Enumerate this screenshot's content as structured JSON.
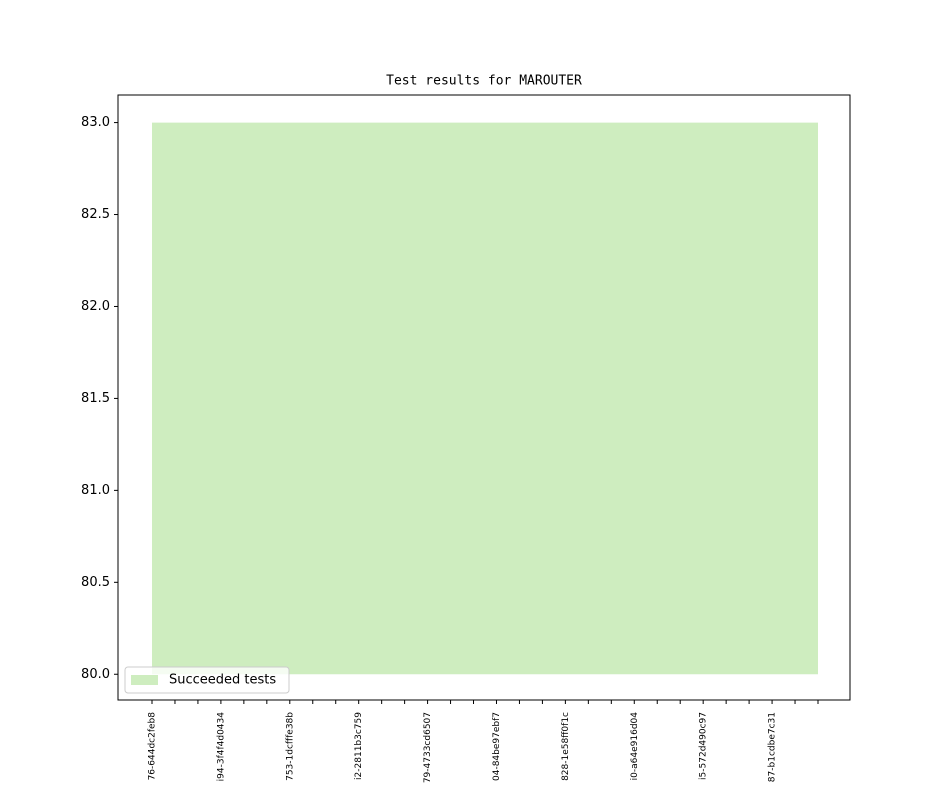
{
  "chart_data": {
    "type": "area",
    "title": "Test results for MAROUTER",
    "categories": [
      "76-644dc2feb8",
      null,
      null,
      "i94-3f4f4d0434",
      null,
      null,
      "753-1dcfffe38b",
      null,
      null,
      "i2-2811b3c759",
      null,
      null,
      "79-4733cd6507",
      null,
      null,
      "04-84be97ebf7",
      null,
      null,
      "828-1e58ff0f1c",
      null,
      null,
      "i0-a64e916d04",
      null,
      null,
      "i5-572d490c97",
      null,
      null,
      "87-b1cdbe7c31",
      null,
      null
    ],
    "series": [
      {
        "name": "Succeeded tests",
        "color": "#ceedbf",
        "values": [
          83,
          83,
          83,
          83,
          83,
          83,
          83,
          83,
          83,
          83,
          83,
          83,
          83,
          83,
          83,
          83,
          83,
          83,
          83,
          83,
          83,
          83,
          83,
          83,
          83,
          83,
          83,
          83,
          83,
          83
        ],
        "lower": [
          80,
          80,
          80,
          80,
          80,
          80,
          80,
          80,
          80,
          80,
          80,
          80,
          80,
          80,
          80,
          80,
          80,
          80,
          80,
          80,
          80,
          80,
          80,
          80,
          80,
          80,
          80,
          80,
          80,
          80
        ]
      }
    ],
    "ylim": [
      79.86,
      83.15
    ],
    "yticks": [
      {
        "value": 80,
        "label": "80.0"
      },
      80.5,
      {
        "value": 81,
        "label": "81.0"
      },
      81.5,
      {
        "value": 82,
        "label": "82.0"
      },
      82.5,
      {
        "value": 83,
        "label": "83.0"
      }
    ],
    "legend": "lower left"
  }
}
